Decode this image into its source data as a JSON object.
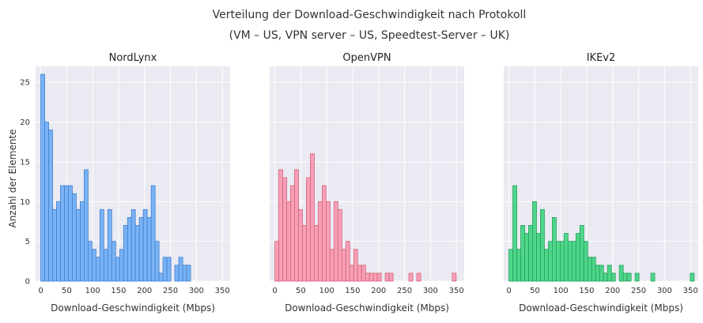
{
  "chart_data": {
    "type": "bar",
    "title": "Verteilung der Download-Geschwindigkeit nach Protokoll",
    "subtitle": "(VM – US, VPN server – US, Speedtest-Server – UK)",
    "ylabel": "Anzahl der Elemente",
    "xlabel": "Download-Geschwindigkeit (Mbps)",
    "xlim": [
      -10,
      365
    ],
    "ylim": [
      0,
      27
    ],
    "bin_width": 7.6,
    "bin_start": 0,
    "x_ticks": [
      0,
      50,
      100,
      150,
      200,
      250,
      300,
      350
    ],
    "y_ticks": [
      0,
      5,
      10,
      15,
      20,
      25
    ],
    "grid": true,
    "panels": [
      {
        "name": "NordLynx",
        "color": "#7ab3f5",
        "edge": "#3f7fd0",
        "counts": [
          26,
          20,
          19,
          9,
          10,
          12,
          12,
          12,
          11,
          9,
          10,
          14,
          5,
          4,
          3,
          9,
          4,
          9,
          5,
          3,
          4,
          7,
          8,
          9,
          7,
          8,
          9,
          8,
          12,
          5,
          1,
          3,
          3,
          0,
          2,
          3,
          2,
          2
        ]
      },
      {
        "name": "OpenVPN",
        "color": "#f7a0b5",
        "edge": "#d6607e",
        "counts": [
          5,
          14,
          13,
          10,
          12,
          14,
          9,
          7,
          13,
          16,
          7,
          10,
          12,
          10,
          4,
          10,
          9,
          4,
          5,
          2,
          4,
          2,
          2,
          1,
          1,
          1,
          1,
          0,
          1,
          1,
          0,
          0,
          0,
          0,
          1,
          0,
          1,
          0,
          0,
          0,
          0,
          0,
          0,
          0,
          0,
          1
        ]
      },
      {
        "name": "IKEv2",
        "color": "#4fd68a",
        "edge": "#21a05a",
        "counts": [
          4,
          12,
          4,
          7,
          6,
          7,
          10,
          6,
          9,
          4,
          5,
          8,
          5,
          5,
          6,
          5,
          5,
          6,
          7,
          5,
          3,
          3,
          2,
          2,
          1,
          2,
          1,
          0,
          2,
          1,
          1,
          0,
          1,
          0,
          0,
          0,
          1,
          0,
          0,
          0,
          0,
          0,
          0,
          0,
          0,
          0,
          1,
          0,
          0,
          0,
          0,
          0,
          0,
          0,
          0,
          0,
          0,
          0,
          0,
          0,
          0,
          0,
          0,
          0,
          0,
          0,
          0,
          0,
          0,
          0,
          0,
          0,
          0,
          0,
          0,
          0,
          0,
          0,
          0,
          0,
          0,
          0,
          0,
          0,
          0,
          0
        ]
      }
    ]
  }
}
